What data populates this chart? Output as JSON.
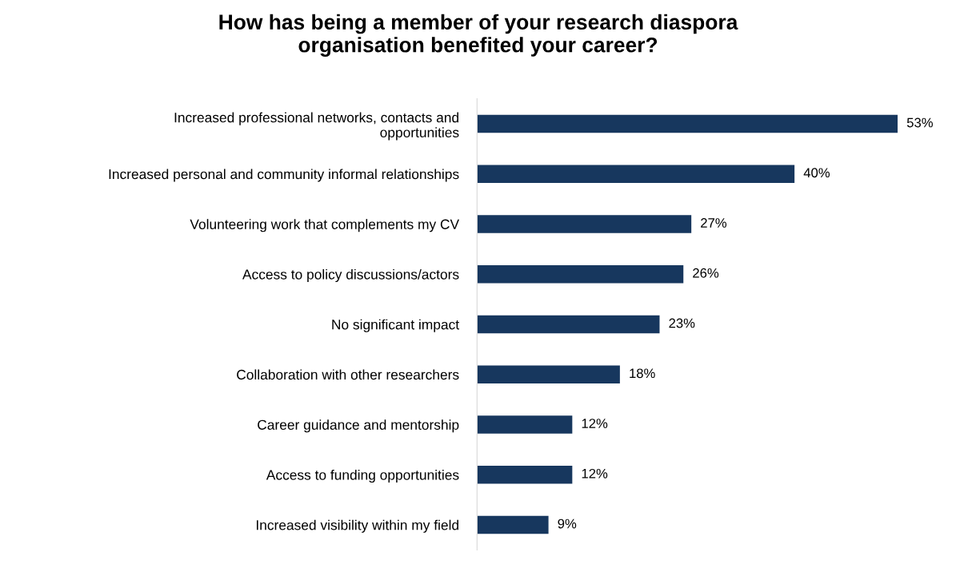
{
  "chart_data": {
    "type": "bar",
    "orientation": "horizontal",
    "title": "How has being a member of your research diaspora\norganisation benefited your career?",
    "categories": [
      "Increased professional networks, contacts and\nopportunities",
      "Increased personal and community informal relationships",
      "Volunteering work that complements my CV",
      "Access to policy discussions/actors",
      "No significant impact",
      "Collaboration with other researchers",
      "Career guidance and mentorship",
      "Access to funding opportunities",
      "Increased visibility within my field"
    ],
    "values": [
      53,
      40,
      27,
      26,
      23,
      18,
      12,
      12,
      9
    ],
    "value_labels": [
      "53%",
      "40%",
      "27%",
      "26%",
      "23%",
      "18%",
      "12%",
      "12%",
      "9%"
    ],
    "color": "#17375e",
    "grid": false,
    "legend": false
  }
}
